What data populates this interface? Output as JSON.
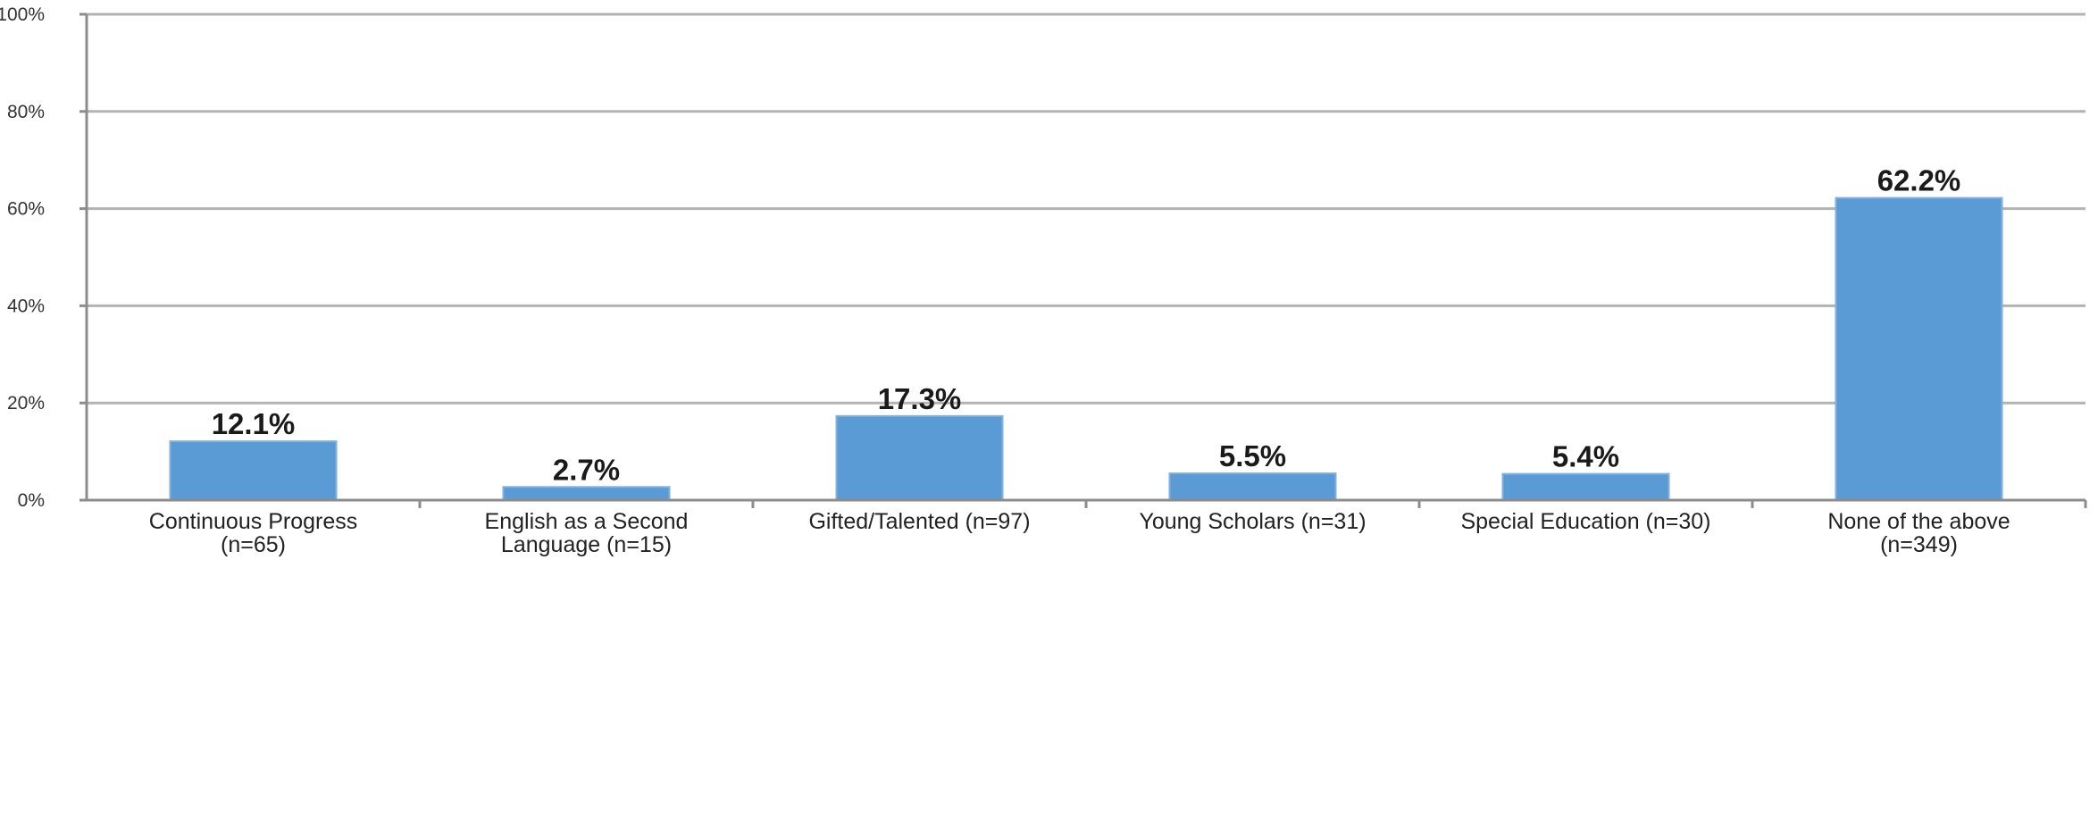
{
  "chart_data": {
    "type": "bar",
    "title": "",
    "xlabel": "",
    "ylabel": "",
    "ylim": [
      0,
      100
    ],
    "y_ticks": [
      0,
      20,
      40,
      60,
      80,
      100
    ],
    "y_tick_labels": [
      "0%",
      "20%",
      "40%",
      "60%",
      "80%",
      "100%"
    ],
    "grid": true,
    "legend": "none",
    "bar_color": "#5b9bd5",
    "categories": [
      [
        "Continuous Progress",
        "(n=65)"
      ],
      [
        "English as a Second",
        "Language (n=15)"
      ],
      [
        "Gifted/Talented (n=97)"
      ],
      [
        "Young Scholars (n=31)"
      ],
      [
        "Special Education (n=30)"
      ],
      [
        "None of the above",
        "(n=349)"
      ]
    ],
    "values": [
      12.1,
      2.7,
      17.3,
      5.5,
      5.4,
      62.2
    ],
    "data_labels": [
      "12.1%",
      "2.7%",
      "17.3%",
      "5.5%",
      "5.4%",
      "62.2%"
    ]
  }
}
